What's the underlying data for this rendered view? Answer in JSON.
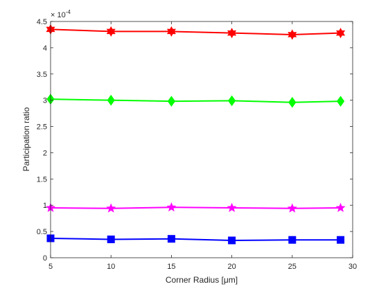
{
  "chart_data": {
    "type": "line",
    "title": "",
    "xlabel": "Corner Radius [μm]",
    "ylabel": "Participation ratio",
    "exponent_label": "× 10",
    "exponent_power": "-4",
    "xlim": [
      5,
      30
    ],
    "ylim": [
      0,
      4.5
    ],
    "xticks": [
      5,
      10,
      15,
      20,
      25,
      30
    ],
    "xtick_labels": [
      "5",
      "10",
      "15",
      "20",
      "25",
      "30"
    ],
    "yticks": [
      0,
      0.5,
      1,
      1.5,
      2,
      2.5,
      3,
      3.5,
      4,
      4.5
    ],
    "ytick_labels": [
      "0",
      "0.5",
      "1",
      "1.5",
      "2",
      "2.5",
      "3",
      "3.5",
      "4",
      "4.5"
    ],
    "grid": false,
    "legend": "none",
    "x": [
      5,
      10,
      15,
      20,
      25,
      29
    ],
    "series": [
      {
        "values": [
          4.35,
          4.31,
          4.31,
          4.28,
          4.25,
          4.28
        ],
        "color": "#ff0000",
        "marker": "hexagram"
      },
      {
        "values": [
          3.02,
          3.0,
          2.98,
          2.99,
          2.96,
          2.98
        ],
        "color": "#00ff00",
        "marker": "diamond"
      },
      {
        "values": [
          0.95,
          0.94,
          0.96,
          0.95,
          0.94,
          0.95
        ],
        "color": "#ff00ff",
        "marker": "pentagram"
      },
      {
        "values": [
          0.37,
          0.35,
          0.36,
          0.33,
          0.34,
          0.34
        ],
        "color": "#0000ff",
        "marker": "square"
      }
    ]
  }
}
